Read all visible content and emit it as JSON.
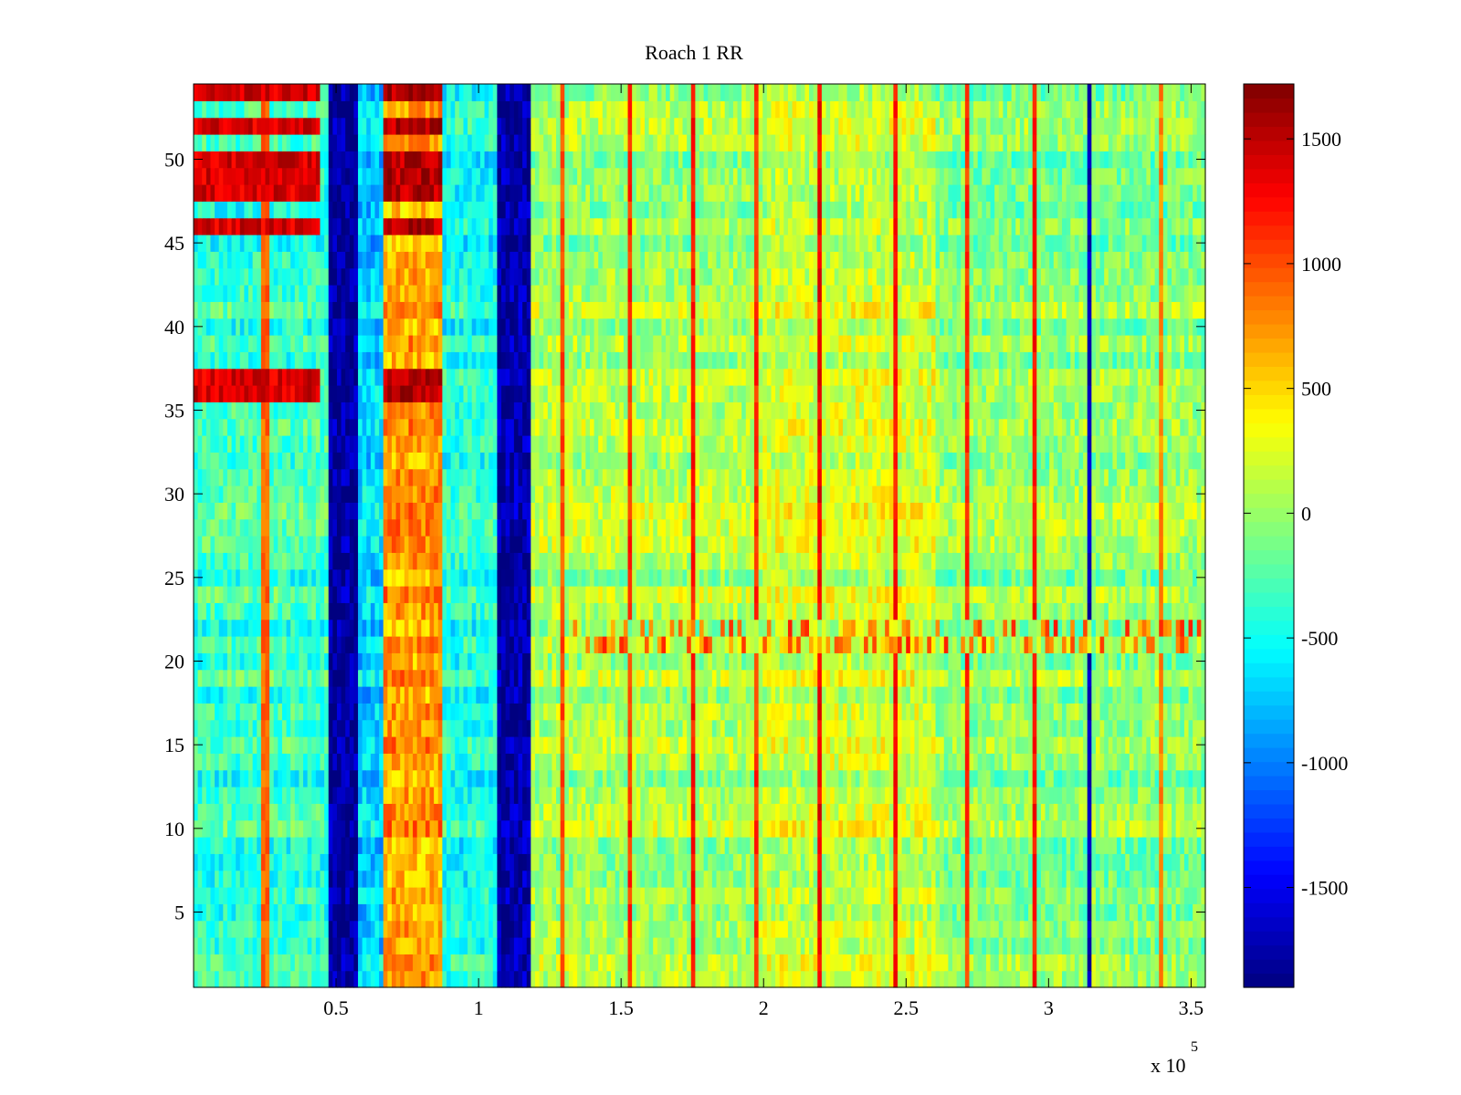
{
  "chart_data": {
    "type": "heatmap",
    "title": "Roach 1 RR",
    "xlabel": "",
    "ylabel": "",
    "x_multiplier_label": "x 10",
    "x_multiplier_exponent": "5",
    "xlim": [
      0,
      355000
    ],
    "ylim": [
      0.5,
      54.5
    ],
    "x_ticks": [
      {
        "value": 0.5,
        "label": "0.5"
      },
      {
        "value": 1,
        "label": "1"
      },
      {
        "value": 1.5,
        "label": "1.5"
      },
      {
        "value": 2,
        "label": "2"
      },
      {
        "value": 2.5,
        "label": "2.5"
      },
      {
        "value": 3,
        "label": "3"
      },
      {
        "value": 3.5,
        "label": "3.5"
      }
    ],
    "y_ticks": [
      {
        "value": 5,
        "label": "5"
      },
      {
        "value": 10,
        "label": "10"
      },
      {
        "value": 15,
        "label": "15"
      },
      {
        "value": 20,
        "label": "20"
      },
      {
        "value": 25,
        "label": "25"
      },
      {
        "value": 30,
        "label": "30"
      },
      {
        "value": 35,
        "label": "35"
      },
      {
        "value": 40,
        "label": "40"
      },
      {
        "value": 45,
        "label": "45"
      },
      {
        "value": 50,
        "label": "50"
      }
    ],
    "colorbar": {
      "colormap": "jet",
      "range": [
        -1900,
        1720
      ],
      "ticks": [
        {
          "value": 1500,
          "label": "1500"
        },
        {
          "value": 1000,
          "label": "1000"
        },
        {
          "value": 500,
          "label": "500"
        },
        {
          "value": 0,
          "label": "0"
        },
        {
          "value": -500,
          "label": "-500"
        },
        {
          "value": -1000,
          "label": "-1000"
        },
        {
          "value": -1500,
          "label": "-1500"
        }
      ]
    },
    "rows": 54,
    "column_bands": [
      {
        "x_start": 0,
        "x_end": 47000,
        "base_value": -350
      },
      {
        "x_start": 47000,
        "x_end": 58000,
        "base_value": -1800
      },
      {
        "x_start": 58000,
        "x_end": 66000,
        "base_value": -700
      },
      {
        "x_start": 66000,
        "x_end": 87000,
        "base_value": 700
      },
      {
        "x_start": 87000,
        "x_end": 106000,
        "base_value": -450
      },
      {
        "x_start": 106000,
        "x_end": 118000,
        "base_value": -1750
      },
      {
        "x_start": 118000,
        "x_end": 200000,
        "base_value": 50
      },
      {
        "x_start": 200000,
        "x_end": 260000,
        "base_value": 180
      },
      {
        "x_start": 260000,
        "x_end": 355000,
        "base_value": -50
      }
    ],
    "hot_rows": [
      {
        "rows": [
          54,
          52,
          50,
          49,
          48,
          46,
          37,
          36
        ],
        "x_start": 0,
        "x_end": 45000,
        "value": 1600
      },
      {
        "rows": [
          54,
          52,
          50,
          49,
          48,
          46,
          37,
          36
        ],
        "x_start": 66000,
        "x_end": 87000,
        "value": 1720
      },
      {
        "rows": [
          22,
          21
        ],
        "x_start": 130000,
        "x_end": 355000,
        "value": 900
      }
    ],
    "vertical_streaks": [
      {
        "x": 25000,
        "value": 900
      },
      {
        "x": 130000,
        "value": 1000
      },
      {
        "x": 153000,
        "value": 1100
      },
      {
        "x": 175000,
        "value": 1200
      },
      {
        "x": 197000,
        "value": 1100
      },
      {
        "x": 220000,
        "value": 1300
      },
      {
        "x": 246000,
        "value": 1200
      },
      {
        "x": 271000,
        "value": 1100
      },
      {
        "x": 295000,
        "value": 1200
      },
      {
        "x": 314000,
        "value": -1700
      },
      {
        "x": 340000,
        "value": 800
      }
    ]
  }
}
